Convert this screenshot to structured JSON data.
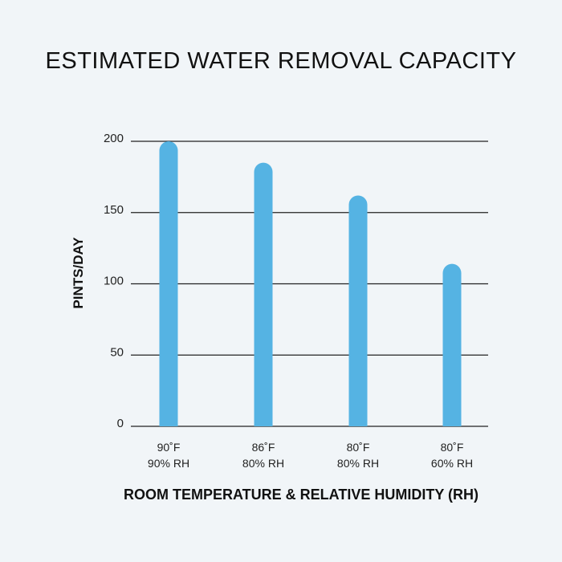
{
  "chart_data": {
    "type": "bar",
    "title": "ESTIMATED WATER REMOVAL CAPACITY",
    "xlabel": "ROOM TEMPERATURE & RELATIVE HUMIDITY (RH)",
    "ylabel": "PINTS/DAY",
    "categories": [
      {
        "temp": "90˚F",
        "rh": "90% RH"
      },
      {
        "temp": "86˚F",
        "rh": "80% RH"
      },
      {
        "temp": "80˚F",
        "rh": "80% RH"
      },
      {
        "temp": "80˚F",
        "rh": "60% RH"
      }
    ],
    "values": [
      200,
      185,
      162,
      114
    ],
    "ylim": [
      0,
      200
    ],
    "yticks": [
      0,
      50,
      100,
      150,
      200
    ],
    "grid": true,
    "bar_color": "#55b3e3"
  }
}
